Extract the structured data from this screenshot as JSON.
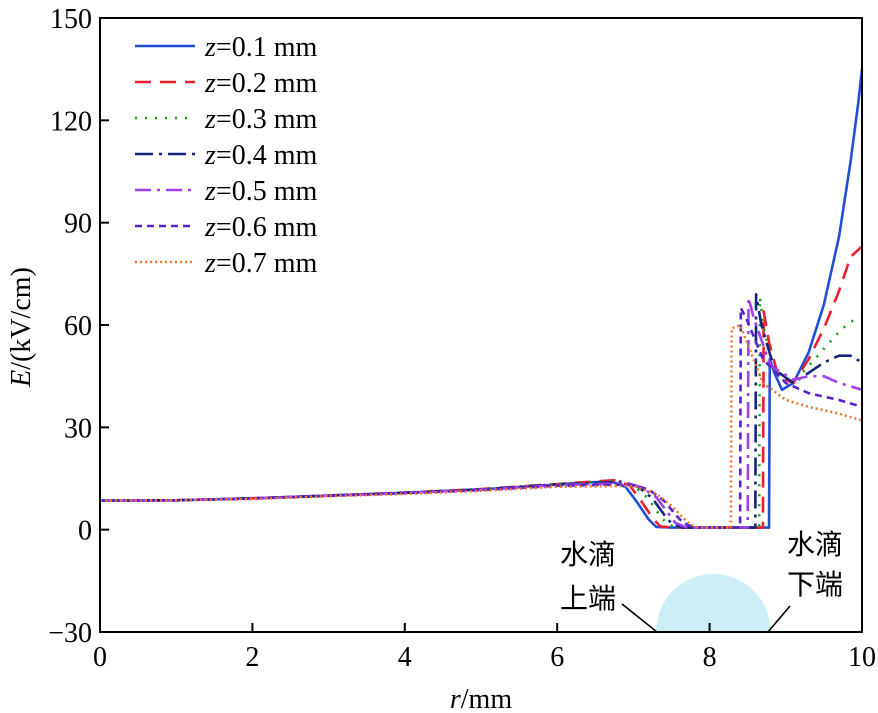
{
  "chart_data": {
    "type": "line",
    "title": "",
    "xlabel": {
      "var": "r",
      "unit": "/mm"
    },
    "ylabel": {
      "var": "E",
      "unit": "/(kV/cm)"
    },
    "xlim": [
      0,
      10
    ],
    "ylim": [
      -30,
      150
    ],
    "xticks": [
      "0",
      "2",
      "4",
      "6",
      "8",
      "10"
    ],
    "yticks": [
      "−30",
      "0",
      "30",
      "60",
      "90",
      "120",
      "150"
    ],
    "legend_position": "top-left",
    "series": [
      {
        "name": "z=0.1 mm",
        "var": "z",
        "rest": "=0.1 mm",
        "color": "#1f4fd8",
        "dash": "",
        "x": [
          0,
          1,
          2,
          3,
          4,
          5,
          6,
          6.7,
          6.9,
          7.05,
          7.2,
          7.3,
          7.5,
          8.0,
          8.5,
          8.78,
          8.79,
          8.85,
          8.95,
          9.1,
          9.3,
          9.5,
          9.7,
          9.85,
          9.95,
          10.0
        ],
        "y": [
          8.5,
          8.6,
          9.2,
          10.0,
          10.8,
          11.8,
          13.2,
          14.2,
          12.5,
          8.0,
          3.0,
          0.8,
          0.6,
          0.6,
          0.6,
          0.6,
          50,
          46,
          41,
          43,
          52,
          66,
          86,
          108,
          125,
          135
        ]
      },
      {
        "name": "z=0.2 mm",
        "var": "z",
        "rest": "=0.2 mm",
        "color": "#e8202e",
        "dash": "16,9",
        "x": [
          0,
          1,
          2,
          3,
          4,
          5,
          6,
          6.75,
          6.95,
          7.1,
          7.25,
          7.35,
          7.5,
          8.0,
          8.5,
          8.7,
          8.71,
          8.78,
          8.9,
          9.1,
          9.3,
          9.5,
          9.7,
          9.85,
          10.0
        ],
        "y": [
          8.5,
          8.6,
          9.2,
          10.0,
          10.9,
          11.9,
          13.4,
          14.5,
          13.0,
          8.5,
          3.5,
          1.0,
          0.6,
          0.6,
          0.6,
          0.6,
          64,
          55,
          45,
          43,
          50,
          59,
          70,
          80,
          83
        ]
      },
      {
        "name": "z=0.3 mm",
        "var": "z",
        "rest": "=0.3 mm",
        "color": "#12a012",
        "dash": "2,8",
        "x": [
          0,
          1,
          2,
          3,
          4,
          5,
          6,
          6.8,
          7.0,
          7.2,
          7.35,
          7.45,
          7.6,
          8.0,
          8.5,
          8.65,
          8.66,
          8.72,
          8.85,
          9.1,
          9.3,
          9.5,
          9.7,
          9.85,
          10.0
        ],
        "y": [
          8.5,
          8.6,
          9.2,
          10.0,
          10.9,
          11.9,
          13.4,
          14.3,
          13.0,
          9.0,
          4.0,
          1.5,
          0.6,
          0.6,
          0.6,
          0.6,
          68,
          58,
          47,
          43,
          48,
          53,
          58,
          61,
          62
        ]
      },
      {
        "name": "z=0.4 mm",
        "var": "z",
        "rest": "=0.4 mm",
        "color": "#16237a",
        "dash": "18,6,3,6",
        "x": [
          0,
          1,
          2,
          3,
          4,
          5,
          6,
          6.85,
          7.05,
          7.25,
          7.4,
          7.5,
          7.65,
          8.0,
          8.5,
          8.6,
          8.61,
          8.68,
          8.85,
          9.1,
          9.3,
          9.5,
          9.7,
          9.85,
          10.0
        ],
        "y": [
          8.5,
          8.6,
          9.2,
          10.0,
          10.8,
          11.8,
          13.3,
          14.0,
          12.8,
          9.2,
          4.5,
          1.8,
          0.6,
          0.6,
          0.6,
          0.6,
          69,
          60,
          47,
          43,
          46,
          49,
          51,
          51,
          49
        ]
      },
      {
        "name": "z=0.5 mm",
        "var": "z",
        "rest": "=0.5 mm",
        "color": "#a040f0",
        "dash": "16,6,3,6",
        "x": [
          0,
          1,
          2,
          3,
          4,
          5,
          6,
          6.9,
          7.1,
          7.3,
          7.45,
          7.55,
          7.7,
          8.0,
          8.45,
          8.5,
          8.51,
          8.58,
          8.8,
          9.1,
          9.3,
          9.5,
          9.7,
          9.85,
          10.0
        ],
        "y": [
          8.5,
          8.6,
          9.2,
          10.0,
          10.8,
          11.7,
          13.1,
          13.6,
          12.5,
          9.5,
          5.0,
          2.0,
          0.6,
          0.6,
          0.6,
          0.6,
          68,
          62,
          48,
          44,
          45,
          45,
          43,
          42,
          41
        ]
      },
      {
        "name": "z=0.6 mm",
        "var": "z",
        "rest": "=0.6 mm",
        "color": "#5a22cc",
        "dash": "7,5",
        "x": [
          0,
          1,
          2,
          3,
          4,
          5,
          6,
          6.95,
          7.2,
          7.4,
          7.55,
          7.65,
          7.8,
          8.0,
          8.38,
          8.4,
          8.41,
          8.48,
          8.7,
          9.0,
          9.3,
          9.5,
          9.7,
          9.85,
          10.0
        ],
        "y": [
          8.5,
          8.6,
          9.1,
          9.9,
          10.7,
          11.6,
          12.9,
          13.2,
          11.8,
          8.5,
          4.5,
          2.0,
          0.6,
          0.6,
          0.6,
          0.6,
          65,
          62,
          50,
          43,
          40,
          39,
          38,
          37,
          36
        ]
      },
      {
        "name": "z=0.7 mm",
        "var": "z",
        "rest": "=0.7 mm",
        "color": "#f07830",
        "dash": "2,3",
        "x": [
          0,
          1,
          2,
          3,
          4,
          5,
          6,
          7.0,
          7.3,
          7.5,
          7.65,
          7.75,
          7.85,
          8.0,
          8.25,
          8.28,
          8.29,
          8.4,
          8.7,
          9.0,
          9.3,
          9.5,
          9.7,
          9.85,
          10.0
        ],
        "y": [
          8.5,
          8.6,
          9.0,
          9.8,
          10.5,
          11.4,
          12.6,
          12.8,
          10.5,
          7.0,
          3.5,
          1.5,
          0.6,
          0.6,
          0.6,
          0.6,
          59,
          60,
          43,
          38,
          36,
          35,
          34,
          33,
          32
        ]
      }
    ],
    "annotations": {
      "droplet_color": "#cdeef6",
      "droplet_range": [
        7.3,
        8.8
      ],
      "droplet_top": -13,
      "upper_end": {
        "line1": "水滴",
        "line2": "上端"
      },
      "lower_end": {
        "line1": "水滴",
        "line2": "下端"
      }
    }
  }
}
